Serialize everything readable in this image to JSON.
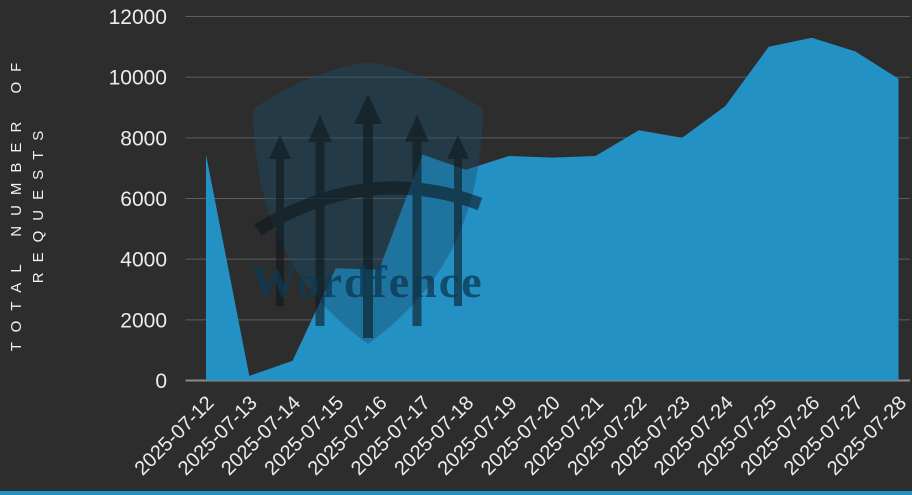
{
  "watermark": {
    "text": "Wordfence"
  },
  "colors": {
    "background": "#2d2d2d",
    "area_fill": "#2491c5",
    "gridline": "#5d5f61",
    "baseline": "#8e8a82",
    "tick_text": "#ececec",
    "axis_title_text": "#f0f0f0",
    "watermark_shield": "#1b4d6b",
    "watermark_dark": "#0e161b",
    "watermark_text": "#0d3a54",
    "bottom_bar": "#2491c5"
  },
  "axes": {
    "y_title": "TOTAL NUMBER OF REQUESTS"
  },
  "chart_data": {
    "type": "area",
    "title": "",
    "xlabel": "",
    "ylabel": "TOTAL NUMBER OF REQUESTS",
    "series_name": "Total number of requests",
    "categories": [
      "2025-07-12",
      "2025-07-13",
      "2025-07-14",
      "2025-07-15",
      "2025-07-16",
      "2025-07-17",
      "2025-07-18",
      "2025-07-19",
      "2025-07-20",
      "2025-07-21",
      "2025-07-22",
      "2025-07-23",
      "2025-07-24",
      "2025-07-25",
      "2025-07-26",
      "2025-07-27",
      "2025-07-28"
    ],
    "values": [
      7450,
      150,
      650,
      3700,
      3650,
      7450,
      6950,
      7400,
      7350,
      7400,
      8250,
      8000,
      9050,
      11000,
      11300,
      10850,
      9950
    ],
    "ylim": [
      0,
      12000
    ],
    "yticks": [
      0,
      2000,
      4000,
      6000,
      8000,
      10000,
      12000
    ],
    "grid": "horizontal",
    "legend": "none",
    "x_tick_rotation_deg": -45
  }
}
